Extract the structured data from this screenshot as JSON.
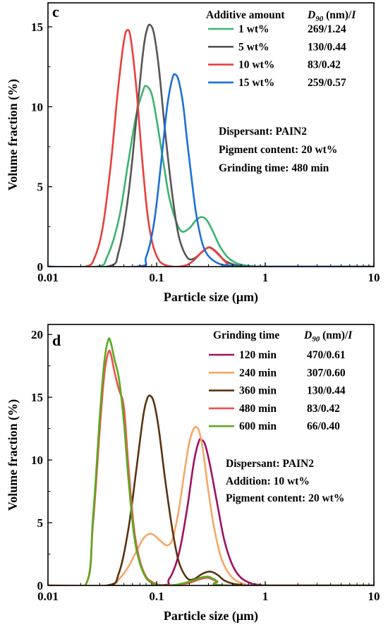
{
  "chart_data": [
    {
      "type": "line",
      "panel_label": "c",
      "xlabel": "Particle size (μm)",
      "ylabel": "Volume fraction (%)",
      "x_scale": "log",
      "xlim": [
        0.01,
        10
      ],
      "ylim": [
        0,
        16.5
      ],
      "x_ticks": [
        0.01,
        0.1,
        1,
        10
      ],
      "x_tick_labels": [
        "0.01",
        "0.1",
        "1",
        "10"
      ],
      "y_ticks": [
        0,
        5,
        10,
        15
      ],
      "y_tick_labels": [
        "0",
        "5",
        "10",
        "15"
      ],
      "legend": {
        "position": "top-right",
        "header_left": "Additive amount",
        "header_right_d90": "D",
        "header_right_sub": "90",
        "header_right_rest": " (nm)/",
        "header_right_i": "I",
        "entries": [
          {
            "label": "1 wt%",
            "value": "269/1.24"
          },
          {
            "label": "5 wt%",
            "value": "130/0.44"
          },
          {
            "label": "10 wt%",
            "value": "83/0.42"
          },
          {
            "label": "15 wt%",
            "value": "259/0.57"
          }
        ]
      },
      "annotations": [
        "Dispersant: PAIN2",
        "Pigment content: 20 wt%",
        "Grinding time: 480 min"
      ],
      "series": [
        {
          "name": "1 wt%",
          "color": "#3cb371",
          "x": [
            0.028,
            0.035,
            0.045,
            0.055,
            0.065,
            0.075,
            0.08,
            0.09,
            0.1,
            0.115,
            0.13,
            0.15,
            0.17,
            0.2,
            0.23,
            0.26,
            0.29,
            0.33,
            0.38,
            0.45,
            0.55,
            0.7,
            0.9,
            1.1
          ],
          "y": [
            0.0,
            0.6,
            3.0,
            6.6,
            9.5,
            11.0,
            11.3,
            10.8,
            9.2,
            6.6,
            4.4,
            2.9,
            2.2,
            2.4,
            2.9,
            3.1,
            2.9,
            2.2,
            1.3,
            0.6,
            0.2,
            0.05,
            0.0,
            0.0
          ]
        },
        {
          "name": "5 wt%",
          "color": "#555555",
          "x": [
            0.035,
            0.045,
            0.055,
            0.065,
            0.075,
            0.082,
            0.088,
            0.095,
            0.105,
            0.12,
            0.14,
            0.16,
            0.19,
            0.22,
            0.26,
            0.3,
            0.33,
            0.37,
            0.42,
            0.5,
            0.6,
            0.75
          ],
          "y": [
            0.0,
            1.0,
            4.5,
            9.2,
            13.4,
            14.9,
            15.1,
            14.5,
            12.4,
            8.4,
            4.4,
            1.9,
            0.6,
            0.5,
            0.9,
            1.2,
            1.1,
            0.8,
            0.4,
            0.15,
            0.05,
            0.0
          ]
        },
        {
          "name": "10 wt%",
          "color": "#e8403c",
          "x": [
            0.022,
            0.027,
            0.032,
            0.038,
            0.044,
            0.05,
            0.054,
            0.058,
            0.065,
            0.073,
            0.082,
            0.092,
            0.105,
            0.12,
            0.14,
            0.16,
            0.19,
            0.22,
            0.26,
            0.3,
            0.34,
            0.39,
            0.45,
            0.55
          ],
          "y": [
            0.0,
            0.6,
            2.5,
            6.5,
            11.0,
            14.1,
            14.8,
            14.2,
            11.2,
            7.0,
            3.4,
            1.4,
            0.4,
            0.1,
            0.0,
            0.0,
            0.1,
            0.4,
            0.9,
            1.2,
            1.0,
            0.6,
            0.2,
            0.0
          ]
        },
        {
          "name": "15 wt%",
          "color": "#1e6fd9",
          "x": [
            0.065,
            0.08,
            0.095,
            0.11,
            0.125,
            0.14,
            0.15,
            0.16,
            0.175,
            0.19,
            0.21,
            0.23,
            0.26,
            0.29,
            0.33,
            0.37,
            0.42,
            0.5,
            0.6,
            0.75,
            0.9
          ],
          "y": [
            0.0,
            0.6,
            2.8,
            6.5,
            10.0,
            11.8,
            12.0,
            11.6,
            10.2,
            8.0,
            5.5,
            3.4,
            1.6,
            0.8,
            0.4,
            0.2,
            0.1,
            0.05,
            0.02,
            0.0,
            0.0
          ]
        }
      ]
    },
    {
      "type": "line",
      "panel_label": "d",
      "xlabel": "Particle size (μm)",
      "ylabel": "Volume fraction (%)",
      "x_scale": "log",
      "xlim": [
        0.01,
        10
      ],
      "ylim": [
        0,
        20.8
      ],
      "x_ticks": [
        0.01,
        0.1,
        1,
        10
      ],
      "x_tick_labels": [
        "0.01",
        "0.1",
        "1",
        "10"
      ],
      "y_ticks": [
        0,
        5,
        10,
        15,
        20
      ],
      "y_tick_labels": [
        "0",
        "5",
        "10",
        "15",
        "20"
      ],
      "legend": {
        "position": "top-right",
        "header_left": "Grinding time",
        "header_right_d90": "D",
        "header_right_sub": "90",
        "header_right_rest": " (nm)/",
        "header_right_i": "I",
        "entries": [
          {
            "label": "120 min",
            "value": "470/0.61"
          },
          {
            "label": "240 min",
            "value": "307/0.60"
          },
          {
            "label": "360 min",
            "value": "130/0.44"
          },
          {
            "label": "480 min",
            "value": "83/0.42"
          },
          {
            "label": "600 min",
            "value": "66/0.40"
          }
        ]
      },
      "annotations": [
        "Dispersant: PAIN2",
        "Addition: 10 wt%",
        "Pigment content: 20 wt%"
      ],
      "series": [
        {
          "name": "120 min",
          "color": "#a0115e",
          "x": [
            0.1,
            0.13,
            0.16,
            0.19,
            0.22,
            0.245,
            0.26,
            0.28,
            0.31,
            0.36,
            0.42,
            0.5,
            0.6,
            0.75,
            0.9,
            1.1
          ],
          "y": [
            0.0,
            0.5,
            2.5,
            6.0,
            9.8,
            11.5,
            11.6,
            11.2,
            9.6,
            6.6,
            3.6,
            1.6,
            0.6,
            0.15,
            0.05,
            0.0
          ]
        },
        {
          "name": "240 min",
          "color": "#f5a868",
          "x": [
            0.035,
            0.045,
            0.055,
            0.065,
            0.075,
            0.085,
            0.095,
            0.11,
            0.125,
            0.14,
            0.16,
            0.18,
            0.2,
            0.22,
            0.235,
            0.25,
            0.27,
            0.3,
            0.34,
            0.4,
            0.5,
            0.65,
            0.8
          ],
          "y": [
            0.0,
            0.5,
            1.5,
            2.7,
            3.7,
            4.1,
            4.0,
            3.5,
            3.2,
            3.7,
            6.0,
            9.0,
            11.4,
            12.5,
            12.6,
            12.1,
            10.5,
            7.5,
            4.5,
            2.0,
            0.6,
            0.1,
            0.0
          ]
        },
        {
          "name": "360 min",
          "color": "#5a3310",
          "x": [
            0.035,
            0.045,
            0.055,
            0.065,
            0.075,
            0.082,
            0.088,
            0.095,
            0.105,
            0.12,
            0.14,
            0.16,
            0.19,
            0.22,
            0.26,
            0.3,
            0.33,
            0.37,
            0.42,
            0.5,
            0.6,
            0.75
          ],
          "y": [
            0.0,
            1.0,
            4.5,
            9.2,
            13.4,
            14.9,
            15.1,
            14.5,
            12.4,
            8.4,
            4.4,
            1.9,
            0.6,
            0.5,
            0.9,
            1.1,
            1.05,
            0.8,
            0.4,
            0.15,
            0.05,
            0.0
          ]
        },
        {
          "name": "480 min",
          "color": "#f0524a",
          "x": [
            0.022,
            0.026,
            0.03,
            0.033,
            0.036,
            0.038,
            0.041,
            0.045,
            0.05,
            0.055,
            0.062,
            0.07,
            0.08,
            0.09,
            0.1,
            0.12,
            0.15,
            0.2,
            0.25,
            0.3,
            0.36,
            0.45
          ],
          "y": [
            0.0,
            5.0,
            12.5,
            16.8,
            18.6,
            18.4,
            17.0,
            15.6,
            14.2,
            9.5,
            4.5,
            2.0,
            0.7,
            0.3,
            0.1,
            0.0,
            0.05,
            0.2,
            0.5,
            0.6,
            0.3,
            0.0
          ]
        },
        {
          "name": "600 min",
          "color": "#5aaa22",
          "x": [
            0.022,
            0.026,
            0.03,
            0.033,
            0.036,
            0.038,
            0.041,
            0.045,
            0.05,
            0.055,
            0.062,
            0.07,
            0.08,
            0.09,
            0.1,
            0.12,
            0.15,
            0.2,
            0.25,
            0.3,
            0.36,
            0.45
          ],
          "y": [
            0.0,
            5.5,
            13.5,
            17.8,
            19.6,
            19.3,
            18.0,
            16.5,
            13.0,
            8.5,
            4.0,
            1.8,
            0.6,
            0.2,
            0.05,
            0.0,
            0.05,
            0.3,
            0.6,
            0.7,
            0.35,
            0.0
          ]
        }
      ]
    }
  ]
}
